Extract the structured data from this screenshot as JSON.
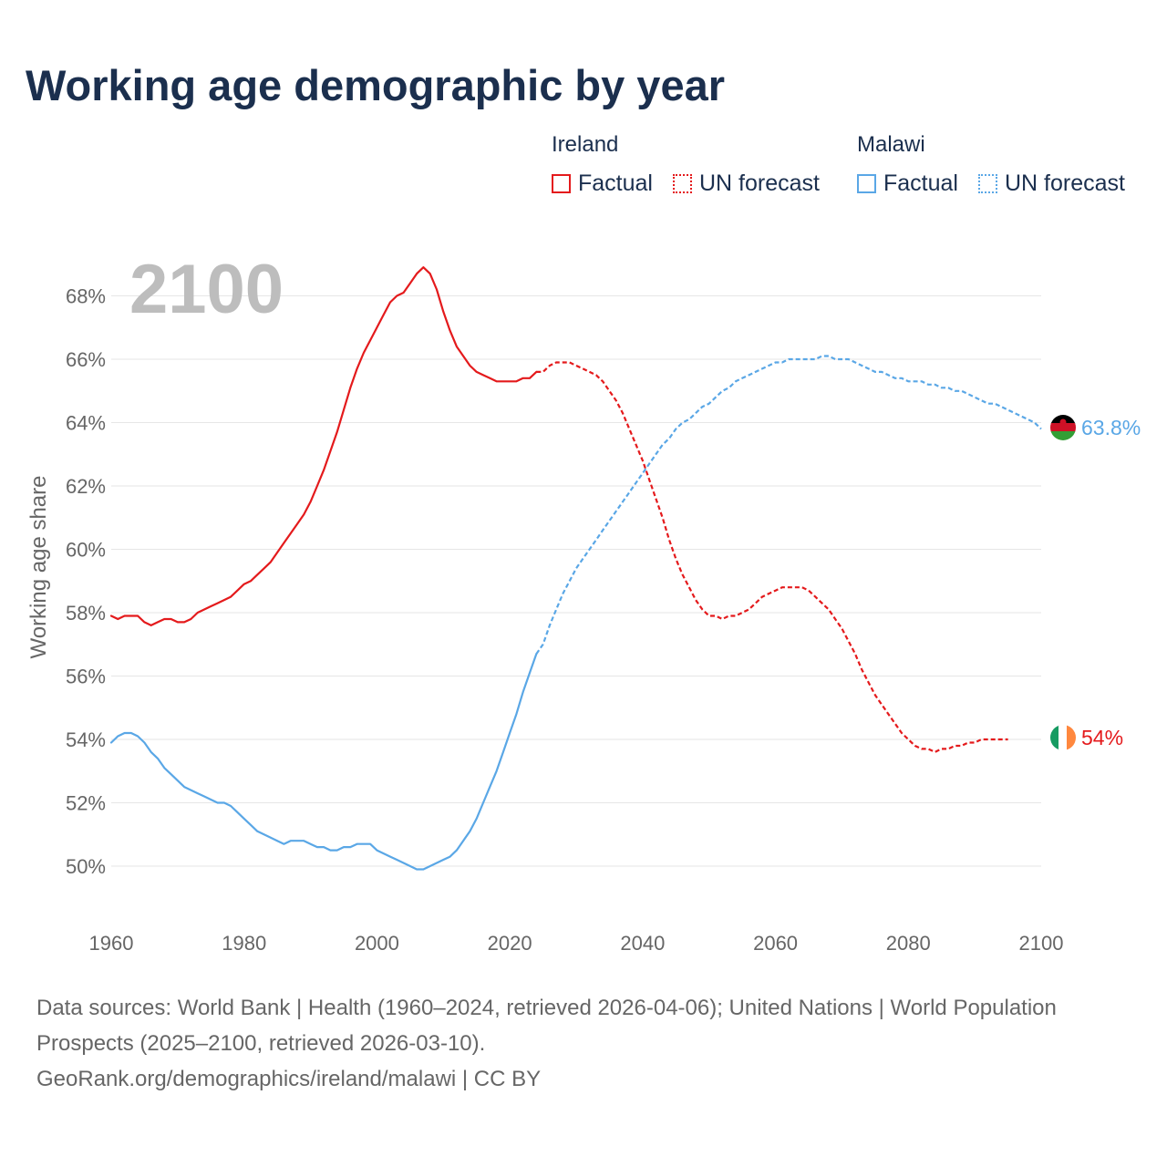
{
  "header": {
    "title": "Working age demographic by year"
  },
  "legend": {
    "groups": [
      {
        "country": "Ireland",
        "factual_label": "Factual",
        "forecast_label": "UN forecast",
        "color": "#e41a1c"
      },
      {
        "country": "Malawi",
        "factual_label": "Factual",
        "forecast_label": "UN forecast",
        "color": "#5aa7e6"
      }
    ]
  },
  "chart_data": {
    "type": "line",
    "title": "Working age demographic by year",
    "year_watermark": "2100",
    "xlabel": "",
    "ylabel": "Working age share",
    "xlim": [
      1960,
      2100
    ],
    "ylim": [
      49,
      70
    ],
    "x_ticks": [
      "1960",
      "1980",
      "2000",
      "2020",
      "2040",
      "2060",
      "2080",
      "2100"
    ],
    "y_ticks": [
      "50%",
      "52%",
      "54%",
      "56%",
      "58%",
      "60%",
      "62%",
      "64%",
      "66%",
      "68%"
    ],
    "grid": true,
    "series": [
      {
        "name": "Ireland",
        "color": "#e41a1c",
        "end_label": "54%",
        "flag": "ireland-flag",
        "factual": [
          [
            1960,
            57.9
          ],
          [
            1961,
            57.8
          ],
          [
            1962,
            57.9
          ],
          [
            1963,
            57.9
          ],
          [
            1964,
            57.9
          ],
          [
            1965,
            57.7
          ],
          [
            1966,
            57.6
          ],
          [
            1967,
            57.7
          ],
          [
            1968,
            57.8
          ],
          [
            1969,
            57.8
          ],
          [
            1970,
            57.7
          ],
          [
            1971,
            57.7
          ],
          [
            1972,
            57.8
          ],
          [
            1973,
            58.0
          ],
          [
            1974,
            58.1
          ],
          [
            1975,
            58.2
          ],
          [
            1976,
            58.3
          ],
          [
            1977,
            58.4
          ],
          [
            1978,
            58.5
          ],
          [
            1979,
            58.7
          ],
          [
            1980,
            58.9
          ],
          [
            1981,
            59.0
          ],
          [
            1982,
            59.2
          ],
          [
            1983,
            59.4
          ],
          [
            1984,
            59.6
          ],
          [
            1985,
            59.9
          ],
          [
            1986,
            60.2
          ],
          [
            1987,
            60.5
          ],
          [
            1988,
            60.8
          ],
          [
            1989,
            61.1
          ],
          [
            1990,
            61.5
          ],
          [
            1991,
            62.0
          ],
          [
            1992,
            62.5
          ],
          [
            1993,
            63.1
          ],
          [
            1994,
            63.7
          ],
          [
            1995,
            64.4
          ],
          [
            1996,
            65.1
          ],
          [
            1997,
            65.7
          ],
          [
            1998,
            66.2
          ],
          [
            1999,
            66.6
          ],
          [
            2000,
            67.0
          ],
          [
            2001,
            67.4
          ],
          [
            2002,
            67.8
          ],
          [
            2003,
            68.0
          ],
          [
            2004,
            68.1
          ],
          [
            2005,
            68.4
          ],
          [
            2006,
            68.7
          ],
          [
            2007,
            68.9
          ],
          [
            2008,
            68.7
          ],
          [
            2009,
            68.2
          ],
          [
            2010,
            67.5
          ],
          [
            2011,
            66.9
          ],
          [
            2012,
            66.4
          ],
          [
            2013,
            66.1
          ],
          [
            2014,
            65.8
          ],
          [
            2015,
            65.6
          ],
          [
            2016,
            65.5
          ],
          [
            2017,
            65.4
          ],
          [
            2018,
            65.3
          ],
          [
            2019,
            65.3
          ],
          [
            2020,
            65.3
          ],
          [
            2021,
            65.3
          ],
          [
            2022,
            65.4
          ],
          [
            2023,
            65.4
          ],
          [
            2024,
            65.6
          ]
        ],
        "forecast": [
          [
            2024,
            65.6
          ],
          [
            2025,
            65.6
          ],
          [
            2026,
            65.8
          ],
          [
            2027,
            65.9
          ],
          [
            2028,
            65.9
          ],
          [
            2029,
            65.9
          ],
          [
            2030,
            65.8
          ],
          [
            2031,
            65.7
          ],
          [
            2032,
            65.6
          ],
          [
            2033,
            65.5
          ],
          [
            2034,
            65.3
          ],
          [
            2035,
            65.0
          ],
          [
            2036,
            64.7
          ],
          [
            2037,
            64.3
          ],
          [
            2038,
            63.8
          ],
          [
            2039,
            63.3
          ],
          [
            2040,
            62.8
          ],
          [
            2041,
            62.2
          ],
          [
            2042,
            61.6
          ],
          [
            2043,
            61.0
          ],
          [
            2044,
            60.3
          ],
          [
            2045,
            59.7
          ],
          [
            2046,
            59.2
          ],
          [
            2047,
            58.8
          ],
          [
            2048,
            58.4
          ],
          [
            2049,
            58.1
          ],
          [
            2050,
            57.9
          ],
          [
            2051,
            57.9
          ],
          [
            2052,
            57.8
          ],
          [
            2053,
            57.9
          ],
          [
            2054,
            57.9
          ],
          [
            2055,
            58.0
          ],
          [
            2056,
            58.1
          ],
          [
            2057,
            58.3
          ],
          [
            2058,
            58.5
          ],
          [
            2059,
            58.6
          ],
          [
            2060,
            58.7
          ],
          [
            2061,
            58.8
          ],
          [
            2062,
            58.8
          ],
          [
            2063,
            58.8
          ],
          [
            2064,
            58.8
          ],
          [
            2065,
            58.7
          ],
          [
            2066,
            58.5
          ],
          [
            2067,
            58.3
          ],
          [
            2068,
            58.1
          ],
          [
            2069,
            57.8
          ],
          [
            2070,
            57.5
          ],
          [
            2071,
            57.1
          ],
          [
            2072,
            56.7
          ],
          [
            2073,
            56.2
          ],
          [
            2074,
            55.8
          ],
          [
            2075,
            55.4
          ],
          [
            2076,
            55.1
          ],
          [
            2077,
            54.8
          ],
          [
            2078,
            54.5
          ],
          [
            2079,
            54.2
          ],
          [
            2080,
            54.0
          ],
          [
            2081,
            53.8
          ],
          [
            2082,
            53.7
          ],
          [
            2083,
            53.7
          ],
          [
            2084,
            53.6
          ],
          [
            2085,
            53.7
          ],
          [
            2086,
            53.7
          ],
          [
            2087,
            53.8
          ],
          [
            2088,
            53.8
          ],
          [
            2089,
            53.9
          ],
          [
            2090,
            53.9
          ],
          [
            2091,
            54.0
          ],
          [
            2092,
            54.0
          ],
          [
            2093,
            54.0
          ],
          [
            2094,
            54.0
          ],
          [
            2095,
            54.0
          ]
        ]
      },
      {
        "name": "Malawi",
        "color": "#5aa7e6",
        "end_label": "63.8%",
        "flag": "malawi-flag",
        "factual": [
          [
            1960,
            53.9
          ],
          [
            1961,
            54.1
          ],
          [
            1962,
            54.2
          ],
          [
            1963,
            54.2
          ],
          [
            1964,
            54.1
          ],
          [
            1965,
            53.9
          ],
          [
            1966,
            53.6
          ],
          [
            1967,
            53.4
          ],
          [
            1968,
            53.1
          ],
          [
            1969,
            52.9
          ],
          [
            1970,
            52.7
          ],
          [
            1971,
            52.5
          ],
          [
            1972,
            52.4
          ],
          [
            1973,
            52.3
          ],
          [
            1974,
            52.2
          ],
          [
            1975,
            52.1
          ],
          [
            1976,
            52.0
          ],
          [
            1977,
            52.0
          ],
          [
            1978,
            51.9
          ],
          [
            1979,
            51.7
          ],
          [
            1980,
            51.5
          ],
          [
            1981,
            51.3
          ],
          [
            1982,
            51.1
          ],
          [
            1983,
            51.0
          ],
          [
            1984,
            50.9
          ],
          [
            1985,
            50.8
          ],
          [
            1986,
            50.7
          ],
          [
            1987,
            50.8
          ],
          [
            1988,
            50.8
          ],
          [
            1989,
            50.8
          ],
          [
            1990,
            50.7
          ],
          [
            1991,
            50.6
          ],
          [
            1992,
            50.6
          ],
          [
            1993,
            50.5
          ],
          [
            1994,
            50.5
          ],
          [
            1995,
            50.6
          ],
          [
            1996,
            50.6
          ],
          [
            1997,
            50.7
          ],
          [
            1998,
            50.7
          ],
          [
            1999,
            50.7
          ],
          [
            2000,
            50.5
          ],
          [
            2001,
            50.4
          ],
          [
            2002,
            50.3
          ],
          [
            2003,
            50.2
          ],
          [
            2004,
            50.1
          ],
          [
            2005,
            50.0
          ],
          [
            2006,
            49.9
          ],
          [
            2007,
            49.9
          ],
          [
            2008,
            50.0
          ],
          [
            2009,
            50.1
          ],
          [
            2010,
            50.2
          ],
          [
            2011,
            50.3
          ],
          [
            2012,
            50.5
          ],
          [
            2013,
            50.8
          ],
          [
            2014,
            51.1
          ],
          [
            2015,
            51.5
          ],
          [
            2016,
            52.0
          ],
          [
            2017,
            52.5
          ],
          [
            2018,
            53.0
          ],
          [
            2019,
            53.6
          ],
          [
            2020,
            54.2
          ],
          [
            2021,
            54.8
          ],
          [
            2022,
            55.5
          ],
          [
            2023,
            56.1
          ],
          [
            2024,
            56.7
          ]
        ],
        "forecast": [
          [
            2024,
            56.7
          ],
          [
            2025,
            57.0
          ],
          [
            2026,
            57.6
          ],
          [
            2027,
            58.1
          ],
          [
            2028,
            58.6
          ],
          [
            2029,
            59.0
          ],
          [
            2030,
            59.4
          ],
          [
            2031,
            59.7
          ],
          [
            2032,
            60.0
          ],
          [
            2033,
            60.3
          ],
          [
            2034,
            60.6
          ],
          [
            2035,
            60.9
          ],
          [
            2036,
            61.2
          ],
          [
            2037,
            61.5
          ],
          [
            2038,
            61.8
          ],
          [
            2039,
            62.1
          ],
          [
            2040,
            62.4
          ],
          [
            2041,
            62.7
          ],
          [
            2042,
            63.0
          ],
          [
            2043,
            63.3
          ],
          [
            2044,
            63.5
          ],
          [
            2045,
            63.8
          ],
          [
            2046,
            64.0
          ],
          [
            2047,
            64.1
          ],
          [
            2048,
            64.3
          ],
          [
            2049,
            64.5
          ],
          [
            2050,
            64.6
          ],
          [
            2051,
            64.8
          ],
          [
            2052,
            65.0
          ],
          [
            2053,
            65.1
          ],
          [
            2054,
            65.3
          ],
          [
            2055,
            65.4
          ],
          [
            2056,
            65.5
          ],
          [
            2057,
            65.6
          ],
          [
            2058,
            65.7
          ],
          [
            2059,
            65.8
          ],
          [
            2060,
            65.9
          ],
          [
            2061,
            65.9
          ],
          [
            2062,
            66.0
          ],
          [
            2063,
            66.0
          ],
          [
            2064,
            66.0
          ],
          [
            2065,
            66.0
          ],
          [
            2066,
            66.0
          ],
          [
            2067,
            66.1
          ],
          [
            2068,
            66.1
          ],
          [
            2069,
            66.0
          ],
          [
            2070,
            66.0
          ],
          [
            2071,
            66.0
          ],
          [
            2072,
            65.9
          ],
          [
            2073,
            65.8
          ],
          [
            2074,
            65.7
          ],
          [
            2075,
            65.6
          ],
          [
            2076,
            65.6
          ],
          [
            2077,
            65.5
          ],
          [
            2078,
            65.4
          ],
          [
            2079,
            65.4
          ],
          [
            2080,
            65.3
          ],
          [
            2081,
            65.3
          ],
          [
            2082,
            65.3
          ],
          [
            2083,
            65.2
          ],
          [
            2084,
            65.2
          ],
          [
            2085,
            65.1
          ],
          [
            2086,
            65.1
          ],
          [
            2087,
            65.0
          ],
          [
            2088,
            65.0
          ],
          [
            2089,
            64.9
          ],
          [
            2090,
            64.8
          ],
          [
            2091,
            64.7
          ],
          [
            2092,
            64.6
          ],
          [
            2093,
            64.6
          ],
          [
            2094,
            64.5
          ],
          [
            2095,
            64.4
          ],
          [
            2096,
            64.3
          ],
          [
            2097,
            64.2
          ],
          [
            2098,
            64.1
          ],
          [
            2099,
            64.0
          ],
          [
            2100,
            63.8
          ]
        ]
      }
    ]
  },
  "footer": {
    "sources": "Data sources: World Bank | Health (1960–2024, retrieved 2026-04-06); United Nations | World Population Prospects (2025–2100, retrieved 2026-03-10).",
    "attribution": "GeoRank.org/demographics/ireland/malawi | CC BY"
  }
}
